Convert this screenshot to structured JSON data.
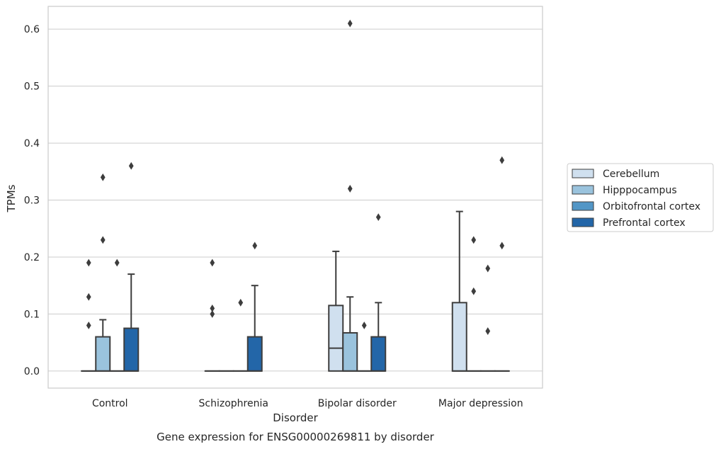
{
  "chart_data": {
    "type": "box",
    "caption": "Gene expression for ENSG00000269811 by disorder",
    "xlabel": "Disorder",
    "ylabel": "TPMs",
    "ylim": [
      -0.03,
      0.64
    ],
    "yticks": [
      "0.0",
      "0.1",
      "0.2",
      "0.3",
      "0.4",
      "0.5",
      "0.6"
    ],
    "grid": "horizontal",
    "legend_position": "right",
    "categories": [
      "Control",
      "Schizophrenia",
      "Bipolar disorder",
      "Major depression"
    ],
    "series": [
      {
        "name": "Cerebellum",
        "color": "#d0e0ef",
        "boxes": [
          {
            "q1": 0,
            "median": 0,
            "q3": 0,
            "whisker_low": 0,
            "whisker_high": 0,
            "outliers": [
              0.08,
              0.13,
              0.19
            ]
          },
          {
            "q1": 0,
            "median": 0,
            "q3": 0,
            "whisker_low": 0,
            "whisker_high": 0,
            "outliers": [
              0.1,
              0.11,
              0.19
            ]
          },
          {
            "q1": 0,
            "median": 0.04,
            "q3": 0.115,
            "whisker_low": 0,
            "whisker_high": 0.21,
            "outliers": []
          },
          {
            "q1": 0,
            "median": 0,
            "q3": 0.12,
            "whisker_low": 0,
            "whisker_high": 0.28,
            "outliers": []
          }
        ]
      },
      {
        "name": "Hipppocampus",
        "color": "#9ac3dd",
        "boxes": [
          {
            "q1": 0,
            "median": 0,
            "q3": 0.06,
            "whisker_low": 0,
            "whisker_high": 0.09,
            "outliers": [
              0.23,
              0.34
            ]
          },
          {
            "q1": 0,
            "median": 0,
            "q3": 0,
            "whisker_low": 0,
            "whisker_high": 0,
            "outliers": []
          },
          {
            "q1": 0,
            "median": 0,
            "q3": 0.067,
            "whisker_low": 0,
            "whisker_high": 0.13,
            "outliers": [
              0.32,
              0.61
            ]
          },
          {
            "q1": 0,
            "median": 0,
            "q3": 0,
            "whisker_low": 0,
            "whisker_high": 0,
            "outliers": [
              0.14,
              0.23
            ]
          }
        ]
      },
      {
        "name": "Orbitofrontal cortex",
        "color": "#5296c6",
        "boxes": [
          {
            "q1": 0,
            "median": 0,
            "q3": 0,
            "whisker_low": 0,
            "whisker_high": 0,
            "outliers": [
              0.19
            ]
          },
          {
            "q1": 0,
            "median": 0,
            "q3": 0,
            "whisker_low": 0,
            "whisker_high": 0,
            "outliers": [
              0.12
            ]
          },
          {
            "q1": 0,
            "median": 0,
            "q3": 0,
            "whisker_low": 0,
            "whisker_high": 0,
            "outliers": [
              0.08
            ]
          },
          {
            "q1": 0,
            "median": 0,
            "q3": 0,
            "whisker_low": 0,
            "whisker_high": 0,
            "outliers": [
              0.07,
              0.18
            ]
          }
        ]
      },
      {
        "name": "Prefrontal cortex",
        "color": "#2366a8",
        "boxes": [
          {
            "q1": 0,
            "median": 0,
            "q3": 0.075,
            "whisker_low": 0,
            "whisker_high": 0.17,
            "outliers": [
              0.36
            ]
          },
          {
            "q1": 0,
            "median": 0,
            "q3": 0.06,
            "whisker_low": 0,
            "whisker_high": 0.15,
            "outliers": [
              0.22
            ]
          },
          {
            "q1": 0,
            "median": 0,
            "q3": 0.06,
            "whisker_low": 0,
            "whisker_high": 0.12,
            "outliers": [
              0.27
            ]
          },
          {
            "q1": 0,
            "median": 0,
            "q3": 0,
            "whisker_low": 0,
            "whisker_high": 0,
            "outliers": [
              0.22,
              0.37
            ]
          }
        ]
      }
    ]
  }
}
